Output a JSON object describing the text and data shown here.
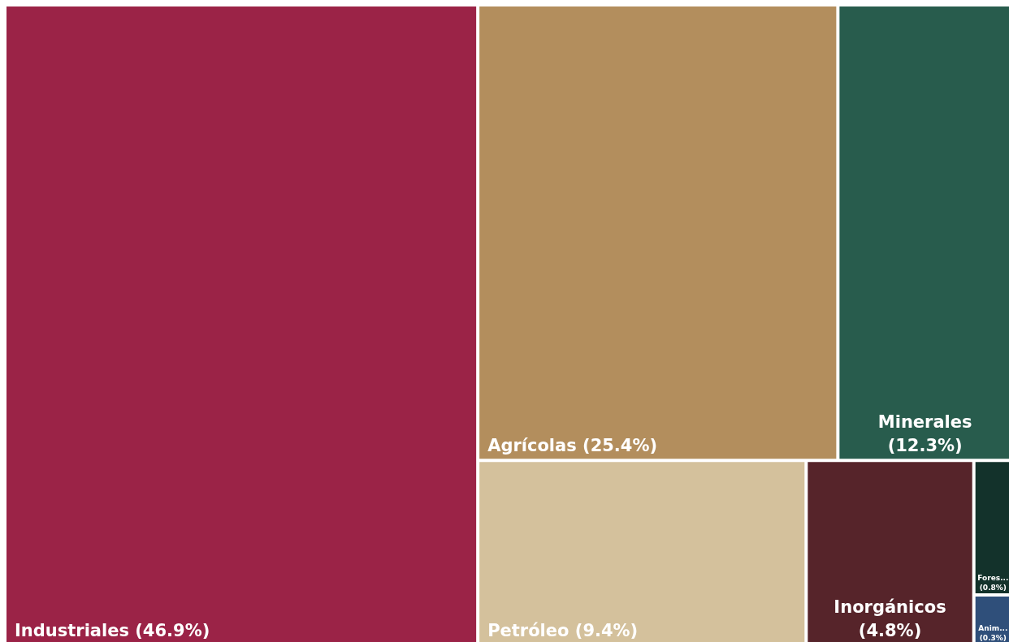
{
  "chart_data": {
    "type": "other",
    "categories": [
      "Industriales",
      "Agrícolas",
      "Minerales",
      "Petróleo",
      "Inorgánicos",
      "Fores...",
      "Anim..."
    ],
    "values": [
      46.9,
      25.4,
      12.3,
      9.4,
      4.8,
      0.8,
      0.3
    ],
    "value_labels": [
      "(46.9%)",
      "(25.4%)",
      "(12.3%)",
      "(9.4%)",
      "(4.8%)",
      "(0.8%)",
      "(0.3%)"
    ],
    "colors": [
      "#9b2347",
      "#b38e5d",
      "#285c4d",
      "#d4c19c",
      "#56242a",
      "#13322b",
      "#2f4f7a"
    ]
  }
}
